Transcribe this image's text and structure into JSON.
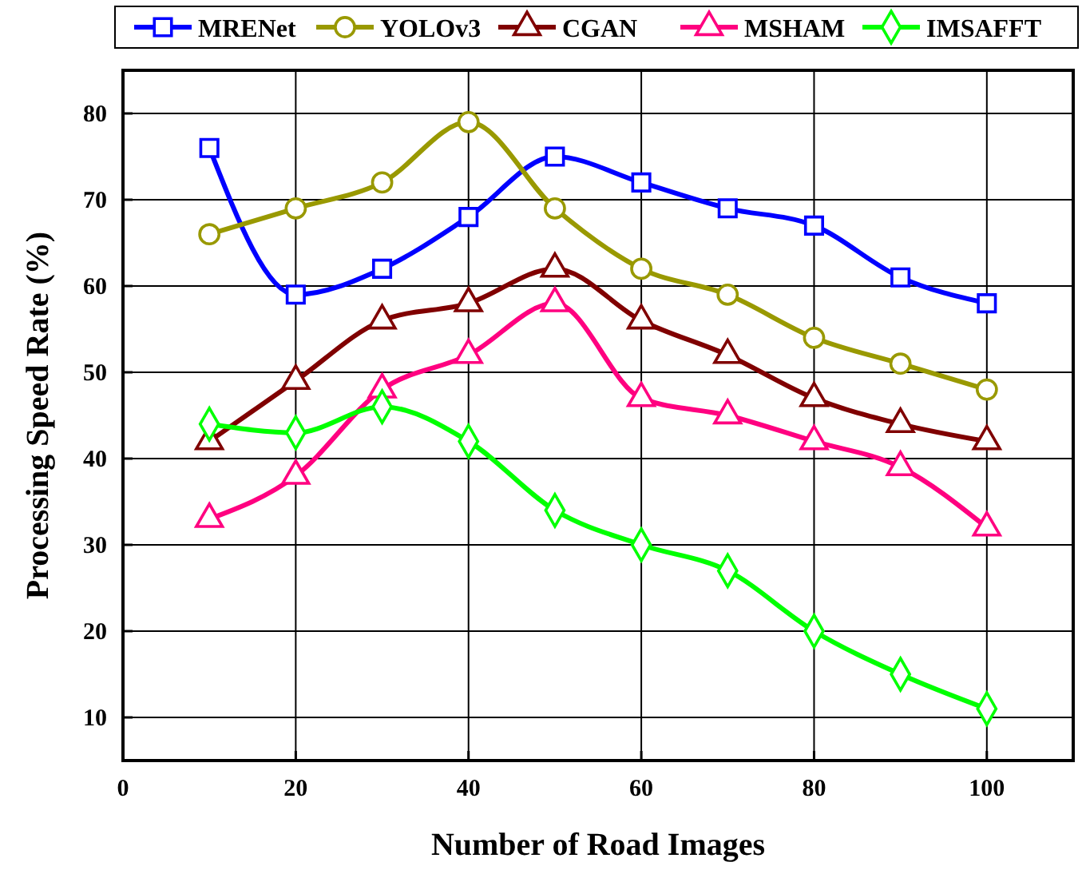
{
  "chart_data": {
    "type": "line",
    "xlabel": "Number of Road Images",
    "ylabel": "Processing Speed Rate (%)",
    "x": [
      10,
      20,
      30,
      40,
      50,
      60,
      70,
      80,
      90,
      100
    ],
    "xlim": [
      0,
      110
    ],
    "xticks": [
      0,
      20,
      40,
      60,
      80,
      100
    ],
    "ylim": [
      5,
      85
    ],
    "yticks": [
      10,
      20,
      30,
      40,
      50,
      60,
      70,
      80
    ],
    "grid": true,
    "legend": "top",
    "line_style": "solid",
    "series": [
      {
        "name": "MRENet",
        "color": "#0000ff",
        "marker": "square",
        "values": [
          76,
          59,
          62,
          68,
          75,
          72,
          69,
          67,
          61,
          58
        ]
      },
      {
        "name": "YOLOv3",
        "color": "#999900",
        "marker": "circle",
        "values": [
          66,
          69,
          72,
          79,
          69,
          62,
          59,
          54,
          51,
          48
        ]
      },
      {
        "name": "CGAN",
        "color": "#800000",
        "marker": "triangle",
        "values": [
          42,
          49,
          56,
          58,
          62,
          56,
          52,
          47,
          44,
          42
        ]
      },
      {
        "name": "MSHAM",
        "color": "#ff0080",
        "marker": "triangle",
        "values": [
          33,
          38,
          48,
          52,
          58,
          47,
          45,
          42,
          39,
          32
        ]
      },
      {
        "name": "IMSAFFT",
        "color": "#00ff00",
        "marker": "diamond",
        "values": [
          44,
          43,
          46,
          42,
          34,
          30,
          27,
          20,
          15,
          11
        ]
      }
    ]
  }
}
